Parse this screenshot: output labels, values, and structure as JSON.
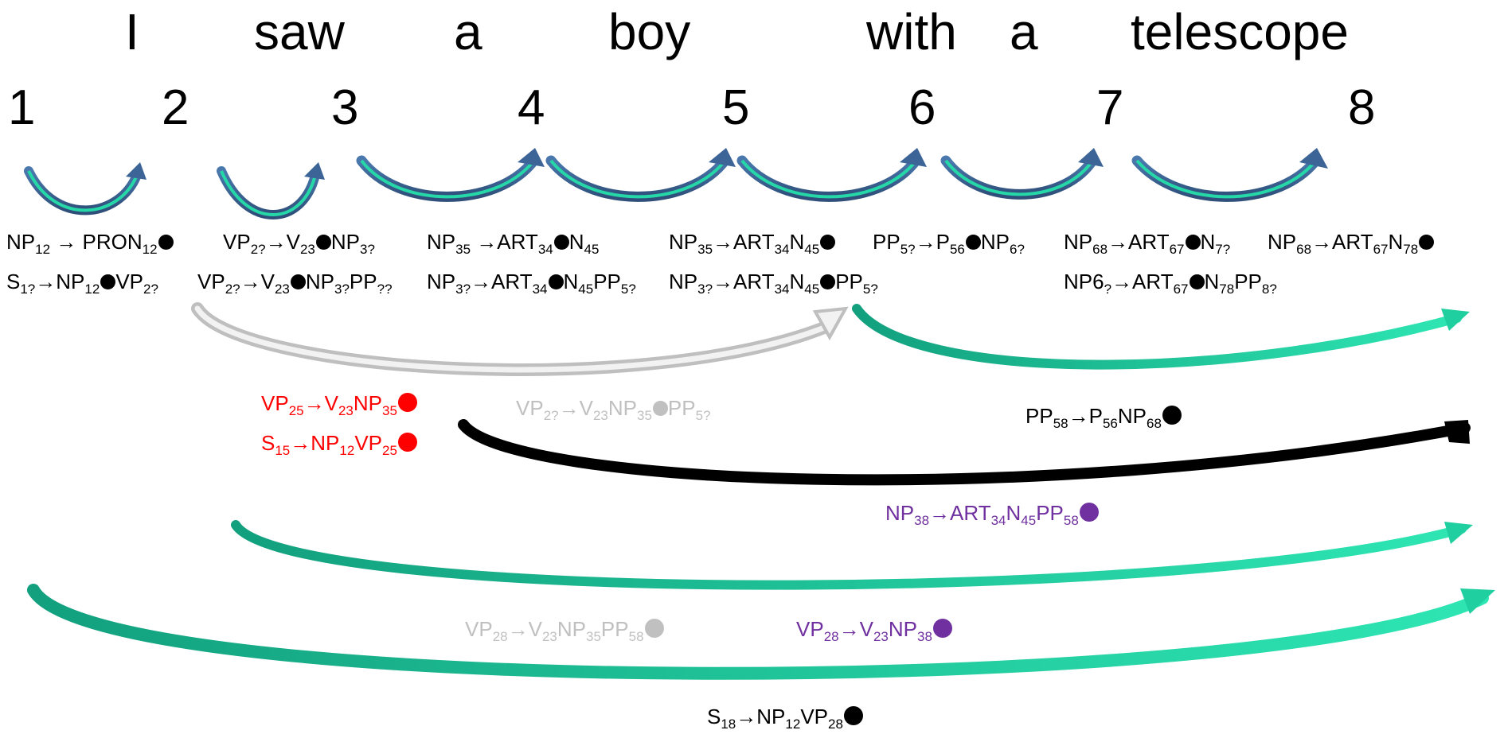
{
  "sentence": {
    "words": [
      "I",
      "saw",
      "a",
      "boy",
      "with",
      "a",
      "telescope"
    ],
    "positions": [
      "1",
      "2",
      "3",
      "4",
      "5",
      "6",
      "7",
      "8"
    ]
  },
  "colors": {
    "black": "#000000",
    "red": "#ff0000",
    "gray": "#c0c0c0",
    "purple": "#7030a0",
    "arrow_blue": "#3c6496",
    "arrow_green": "#1fcf9f",
    "arrow_teal": "#14a98a"
  },
  "rules": [
    {
      "color": "black",
      "parts": [
        [
          "t",
          "NP"
        ],
        [
          "s",
          "12"
        ],
        [
          "t",
          " → PRON"
        ],
        [
          "s",
          "12"
        ],
        [
          "d",
          ""
        ]
      ]
    },
    {
      "color": "black",
      "parts": [
        [
          "t",
          "S"
        ],
        [
          "s",
          "1?"
        ],
        [
          "t",
          "→NP"
        ],
        [
          "s",
          "12"
        ],
        [
          "d",
          ""
        ],
        [
          "t",
          "VP"
        ],
        [
          "s",
          "2?"
        ]
      ]
    },
    {
      "color": "black",
      "parts": [
        [
          "t",
          "VP"
        ],
        [
          "s",
          "2?"
        ],
        [
          "t",
          "→V"
        ],
        [
          "s",
          "23"
        ],
        [
          "d",
          ""
        ],
        [
          "t",
          "NP"
        ],
        [
          "s",
          "3?"
        ]
      ]
    },
    {
      "color": "black",
      "parts": [
        [
          "t",
          "VP"
        ],
        [
          "s",
          "2?"
        ],
        [
          "t",
          "→V"
        ],
        [
          "s",
          "23"
        ],
        [
          "d",
          ""
        ],
        [
          "t",
          "NP"
        ],
        [
          "s",
          "3?"
        ],
        [
          "t",
          "PP"
        ],
        [
          "s",
          "??"
        ]
      ]
    },
    {
      "color": "black",
      "parts": [
        [
          "t",
          "NP"
        ],
        [
          "s",
          "35"
        ],
        [
          "t",
          " →ART"
        ],
        [
          "s",
          "34"
        ],
        [
          "d",
          ""
        ],
        [
          "t",
          "N"
        ],
        [
          "s",
          "45"
        ]
      ]
    },
    {
      "color": "black",
      "parts": [
        [
          "t",
          "NP"
        ],
        [
          "s",
          "3?"
        ],
        [
          "t",
          "→ART"
        ],
        [
          "s",
          "34"
        ],
        [
          "d",
          ""
        ],
        [
          "t",
          "N"
        ],
        [
          "s",
          "45"
        ],
        [
          "t",
          "PP"
        ],
        [
          "s",
          "5?"
        ]
      ]
    },
    {
      "color": "black",
      "parts": [
        [
          "t",
          "NP"
        ],
        [
          "s",
          "35"
        ],
        [
          "t",
          "→ART"
        ],
        [
          "s",
          "34"
        ],
        [
          "t",
          "N"
        ],
        [
          "s",
          "45"
        ],
        [
          "d",
          ""
        ]
      ]
    },
    {
      "color": "black",
      "parts": [
        [
          "t",
          "NP"
        ],
        [
          "s",
          "3?"
        ],
        [
          "t",
          "→ART"
        ],
        [
          "s",
          "34"
        ],
        [
          "t",
          "N"
        ],
        [
          "s",
          "45"
        ],
        [
          "d",
          ""
        ],
        [
          "t",
          "PP"
        ],
        [
          "s",
          "5?"
        ]
      ]
    },
    {
      "color": "black",
      "parts": [
        [
          "t",
          "PP"
        ],
        [
          "s",
          "5?"
        ],
        [
          "t",
          "→P"
        ],
        [
          "s",
          "56"
        ],
        [
          "d",
          ""
        ],
        [
          "t",
          "NP"
        ],
        [
          "s",
          "6?"
        ]
      ]
    },
    {
      "color": "black",
      "parts": [
        [
          "t",
          "NP"
        ],
        [
          "s",
          "68"
        ],
        [
          "t",
          "→ART"
        ],
        [
          "s",
          "67"
        ],
        [
          "d",
          ""
        ],
        [
          "t",
          "N"
        ],
        [
          "s",
          "7?"
        ]
      ]
    },
    {
      "color": "black",
      "parts": [
        [
          "t",
          "NP6"
        ],
        [
          "s",
          "?"
        ],
        [
          "t",
          "→ART"
        ],
        [
          "s",
          "67"
        ],
        [
          "d",
          ""
        ],
        [
          "t",
          "N"
        ],
        [
          "s",
          "78"
        ],
        [
          "t",
          "PP"
        ],
        [
          "s",
          "8?"
        ]
      ]
    },
    {
      "color": "black",
      "parts": [
        [
          "t",
          "NP"
        ],
        [
          "s",
          "68"
        ],
        [
          "t",
          "→ART"
        ],
        [
          "s",
          "67"
        ],
        [
          "t",
          "N"
        ],
        [
          "s",
          "78"
        ],
        [
          "d",
          ""
        ]
      ]
    },
    {
      "color": "red",
      "parts": [
        [
          "t",
          "VP"
        ],
        [
          "s",
          "25"
        ],
        [
          "t",
          "→V"
        ],
        [
          "s",
          "23"
        ],
        [
          "t",
          "NP"
        ],
        [
          "s",
          "35"
        ],
        [
          "D",
          ""
        ]
      ]
    },
    {
      "color": "red",
      "parts": [
        [
          "t",
          "S"
        ],
        [
          "s",
          "15"
        ],
        [
          "t",
          "→NP"
        ],
        [
          "s",
          "12"
        ],
        [
          "t",
          "VP"
        ],
        [
          "s",
          "25"
        ],
        [
          "D",
          ""
        ]
      ]
    },
    {
      "color": "gray",
      "parts": [
        [
          "t",
          "VP"
        ],
        [
          "s",
          "2?"
        ],
        [
          "t",
          "→V"
        ],
        [
          "s",
          "23"
        ],
        [
          "t",
          "NP"
        ],
        [
          "s",
          "35"
        ],
        [
          "d",
          ""
        ],
        [
          "t",
          "PP"
        ],
        [
          "s",
          "5?"
        ]
      ]
    },
    {
      "color": "black",
      "parts": [
        [
          "t",
          "PP"
        ],
        [
          "s",
          "58"
        ],
        [
          "t",
          "→P"
        ],
        [
          "s",
          "56"
        ],
        [
          "t",
          "NP"
        ],
        [
          "s",
          "68"
        ],
        [
          "D",
          ""
        ]
      ]
    },
    {
      "color": "purple",
      "parts": [
        [
          "t",
          "NP"
        ],
        [
          "s",
          "38"
        ],
        [
          "t",
          "→ART"
        ],
        [
          "s",
          "34"
        ],
        [
          "t",
          "N"
        ],
        [
          "s",
          "45"
        ],
        [
          "t",
          "PP"
        ],
        [
          "s",
          "58"
        ],
        [
          "D",
          ""
        ]
      ]
    },
    {
      "color": "gray",
      "parts": [
        [
          "t",
          "VP"
        ],
        [
          "s",
          "28"
        ],
        [
          "t",
          "→V"
        ],
        [
          "s",
          "23"
        ],
        [
          "t",
          "NP"
        ],
        [
          "s",
          "35"
        ],
        [
          "t",
          "PP"
        ],
        [
          "s",
          "58"
        ],
        [
          "D",
          ""
        ]
      ]
    },
    {
      "color": "purple",
      "parts": [
        [
          "t",
          "VP"
        ],
        [
          "s",
          "28"
        ],
        [
          "t",
          "→V"
        ],
        [
          "s",
          "23"
        ],
        [
          "t",
          "NP"
        ],
        [
          "s",
          "38"
        ],
        [
          "D",
          ""
        ]
      ]
    },
    {
      "color": "black",
      "parts": [
        [
          "t",
          "S"
        ],
        [
          "s",
          "18"
        ],
        [
          "t",
          "→NP"
        ],
        [
          "s",
          "12"
        ],
        [
          "t",
          "VP"
        ],
        [
          "s",
          "28"
        ],
        [
          "D",
          ""
        ]
      ]
    }
  ]
}
